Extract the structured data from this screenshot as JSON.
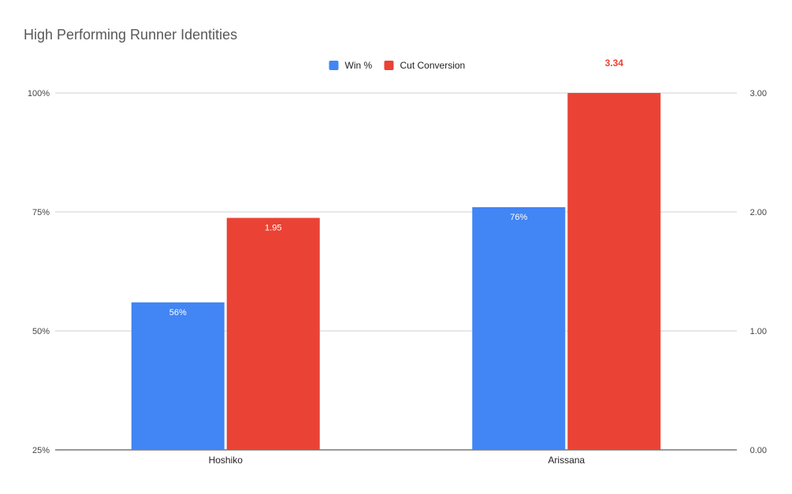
{
  "chart_data": {
    "type": "bar",
    "title": "High Performing Runner Identities",
    "categories": [
      "Hoshiko",
      "Arissana"
    ],
    "series": [
      {
        "name": "Win %",
        "axis": "left",
        "color": "#4285F4",
        "values": [
          56,
          76
        ],
        "labels": [
          "56%",
          "76%"
        ]
      },
      {
        "name": "Cut Conversion",
        "axis": "right",
        "color": "#EA4335",
        "values": [
          1.95,
          3.34
        ],
        "labels": [
          "1.95",
          "3.34"
        ]
      }
    ],
    "y_left": {
      "range": [
        25,
        100
      ],
      "ticks": [
        25,
        50,
        75,
        100
      ],
      "tick_labels": [
        "25%",
        "50%",
        "75%",
        "100%"
      ]
    },
    "y_right": {
      "range": [
        0,
        3
      ],
      "ticks": [
        0,
        1,
        2,
        3
      ],
      "tick_labels": [
        "0.00",
        "1.00",
        "2.00",
        "3.00"
      ]
    },
    "grid": true,
    "legend_position": "top",
    "overflow_label_color": "#EA4335"
  }
}
